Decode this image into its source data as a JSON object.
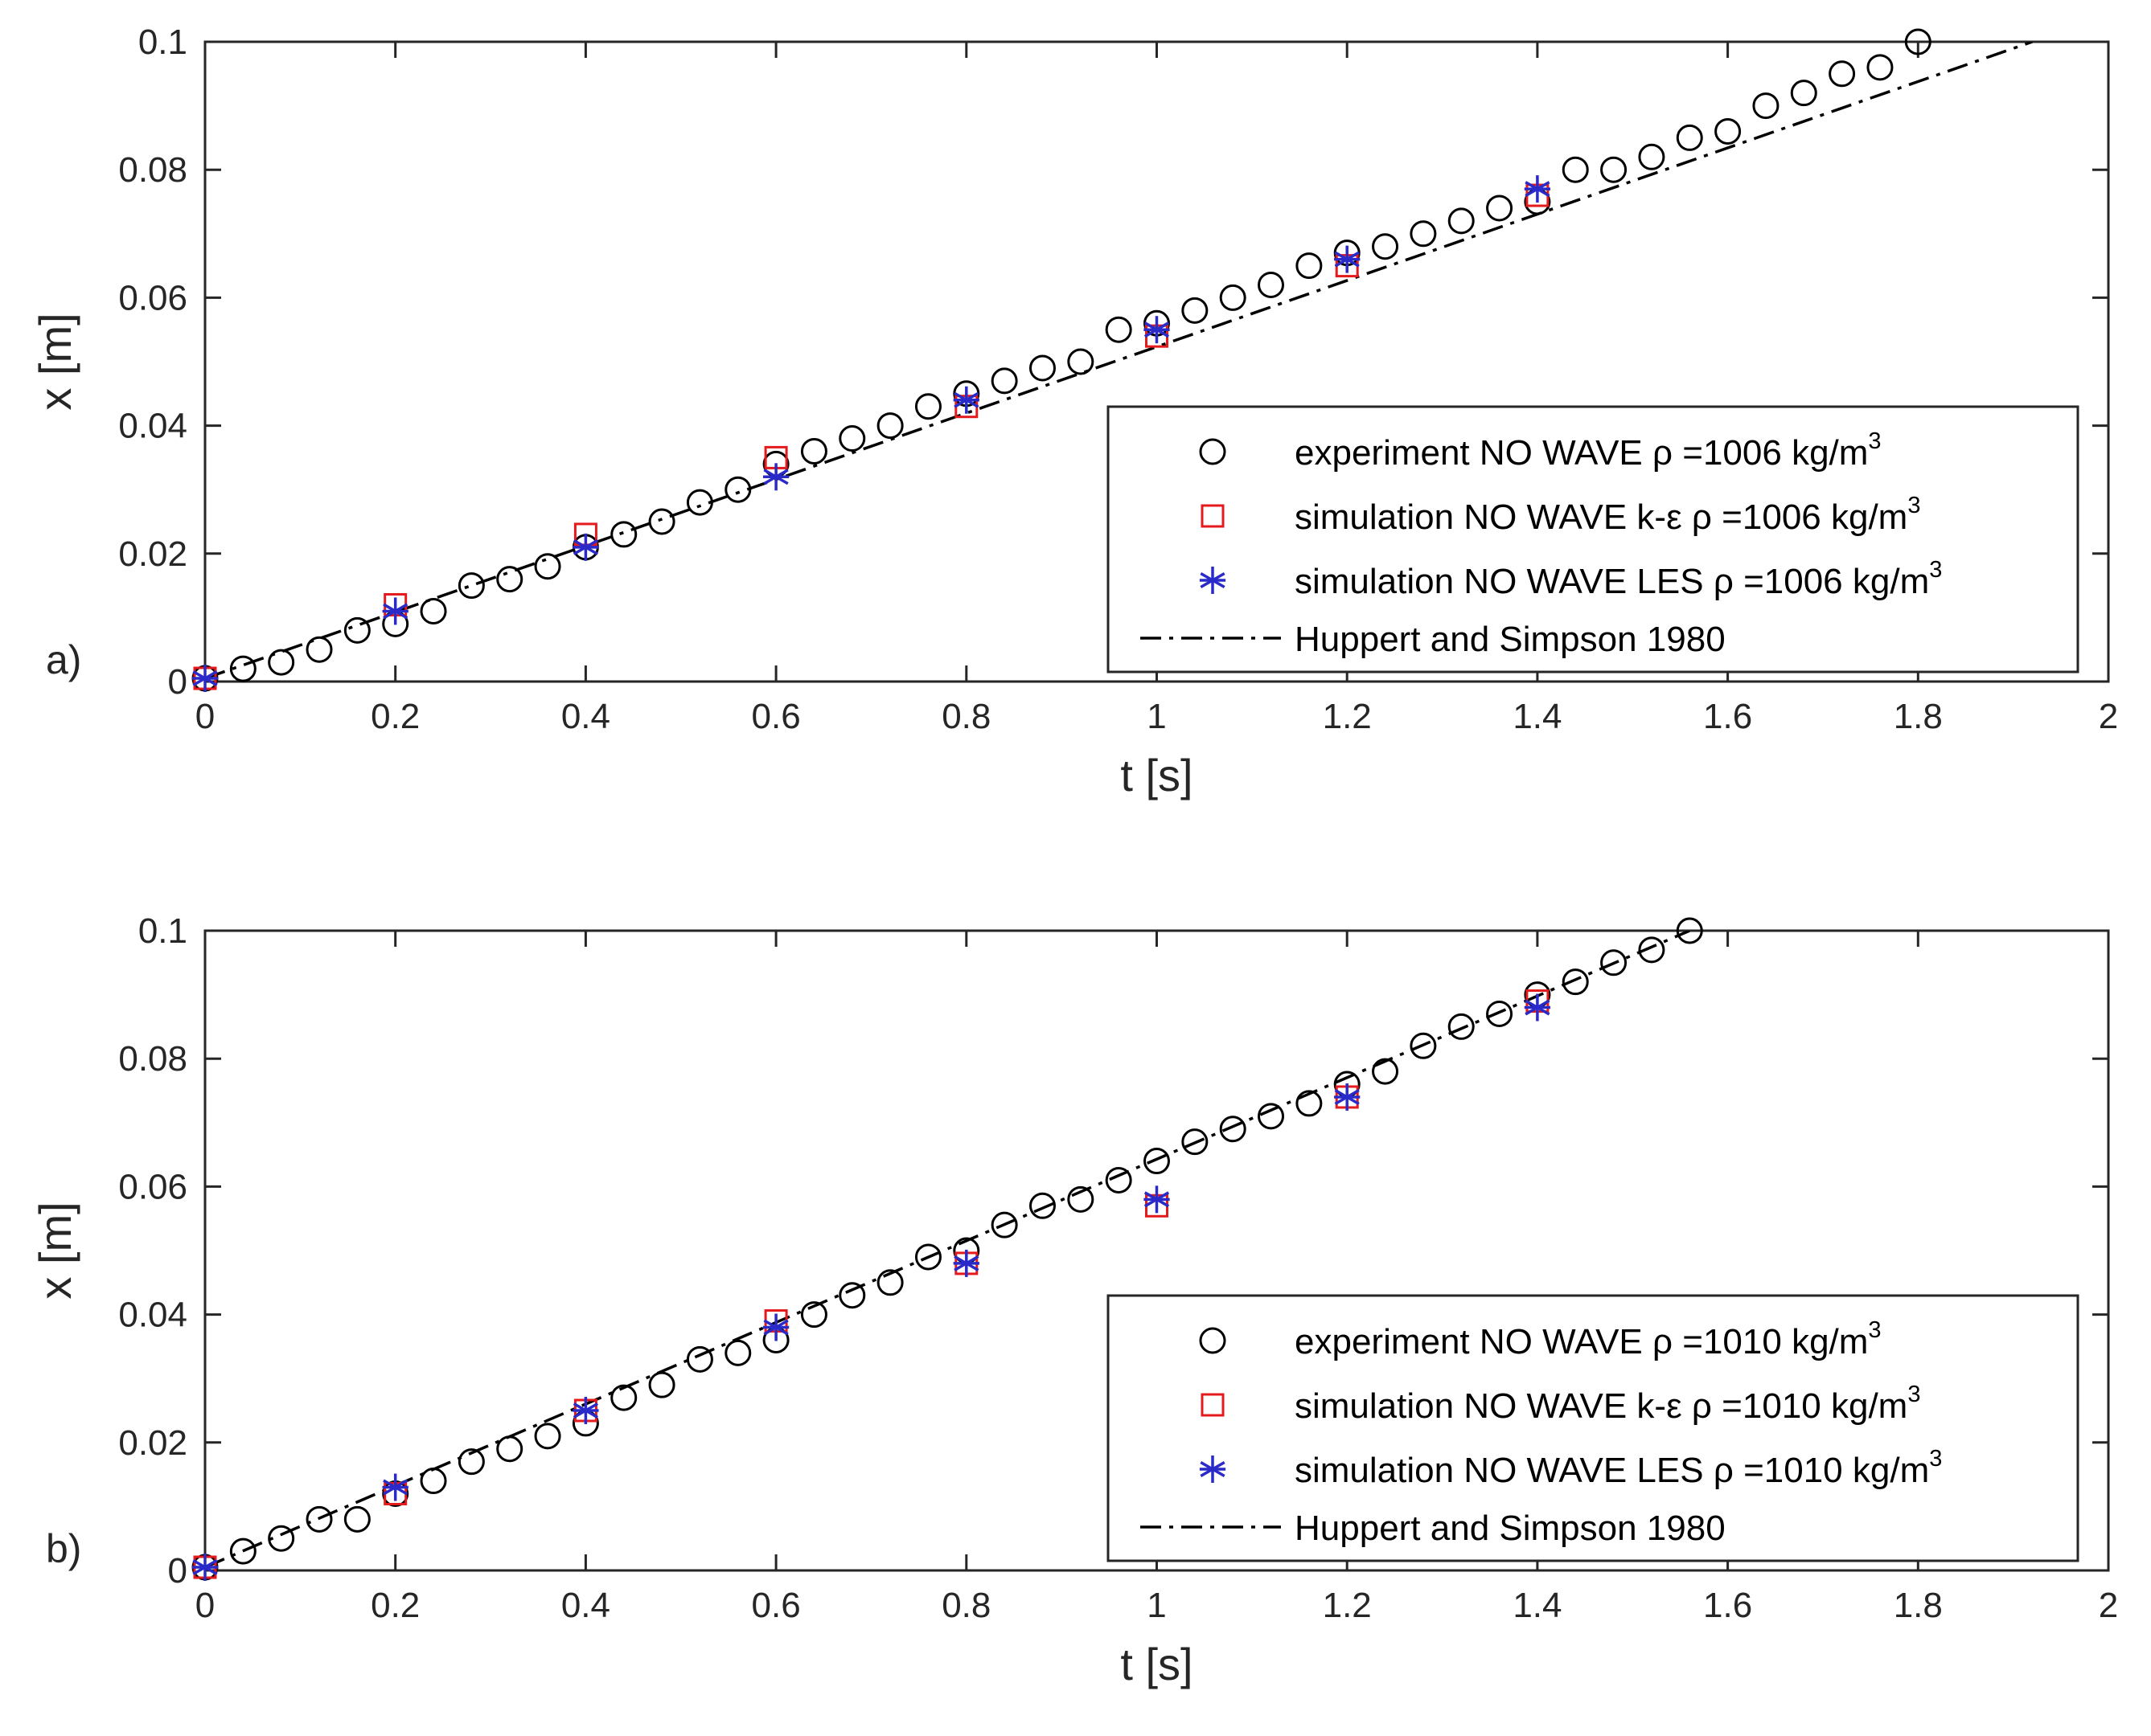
{
  "chart_data": [
    {
      "type": "scatter",
      "panel_label": "a)",
      "xlabel": "t [s]",
      "ylabel": "x [m]",
      "xlim": [
        0,
        2
      ],
      "ylim": [
        0,
        0.1
      ],
      "xticks": [
        "0",
        "0.2",
        "0.4",
        "0.6",
        "0.8",
        "1",
        "1.2",
        "1.4",
        "1.6",
        "1.8",
        "2"
      ],
      "yticks": [
        "0",
        "0.02",
        "0.04",
        "0.06",
        "0.08",
        "0.1"
      ],
      "grid": false,
      "legend_position": "lower-right",
      "series": [
        {
          "name": "experiment NO WAVE ρ =1006 kg/m3",
          "legend_main": "experiment NO WAVE ρ =1006 kg/m",
          "legend_sup": "3",
          "marker": "circle",
          "color": "#000000",
          "x": [
            0,
            0.04,
            0.08,
            0.12,
            0.16,
            0.2,
            0.24,
            0.28,
            0.32,
            0.36,
            0.4,
            0.44,
            0.48,
            0.52,
            0.56,
            0.6,
            0.64,
            0.68,
            0.72,
            0.76,
            0.8,
            0.84,
            0.88,
            0.92,
            0.96,
            1.0,
            1.04,
            1.08,
            1.12,
            1.16,
            1.2,
            1.24,
            1.28,
            1.32,
            1.36,
            1.4,
            1.44,
            1.48,
            1.52,
            1.56,
            1.6,
            1.64,
            1.68,
            1.72,
            1.76,
            1.8
          ],
          "y": [
            0.0005,
            0.002,
            0.003,
            0.005,
            0.008,
            0.009,
            0.011,
            0.015,
            0.016,
            0.018,
            0.021,
            0.023,
            0.025,
            0.028,
            0.03,
            0.034,
            0.036,
            0.038,
            0.04,
            0.043,
            0.045,
            0.047,
            0.049,
            0.05,
            0.055,
            0.056,
            0.058,
            0.06,
            0.062,
            0.065,
            0.067,
            0.068,
            0.07,
            0.072,
            0.074,
            0.075,
            0.08,
            0.08,
            0.082,
            0.085,
            0.086,
            0.09,
            0.092,
            0.095,
            0.096,
            0.1
          ]
        },
        {
          "name": "simulation NO WAVE k-ε ρ =1006 kg/m3",
          "legend_main": "simulation NO WAVE k-ε ρ =1006 kg/m",
          "legend_sup": "3",
          "marker": "square",
          "color": "#e41a1c",
          "x": [
            0,
            0.2,
            0.4,
            0.6,
            0.8,
            1.0,
            1.2,
            1.4
          ],
          "y": [
            0.0005,
            0.012,
            0.023,
            0.035,
            0.043,
            0.054,
            0.065,
            0.076
          ]
        },
        {
          "name": "simulation NO WAVE LES ρ =1006 kg/m3",
          "legend_main": "simulation NO WAVE LES ρ =1006 kg/m",
          "legend_sup": "3",
          "marker": "asterisk",
          "color": "#2a2ac8",
          "x": [
            0,
            0.2,
            0.4,
            0.6,
            0.8,
            1.0,
            1.2,
            1.4
          ],
          "y": [
            0.0005,
            0.011,
            0.021,
            0.032,
            0.044,
            0.055,
            0.066,
            0.077
          ]
        },
        {
          "name": "Huppert and Simpson 1980",
          "legend_main": "Huppert and Simpson 1980",
          "legend_sup": "",
          "marker": "dashdot-line",
          "color": "#000000",
          "x": [
            0,
            1.92
          ],
          "y": [
            0.0005,
            0.1
          ]
        }
      ]
    },
    {
      "type": "scatter",
      "panel_label": "b)",
      "xlabel": "t [s]",
      "ylabel": "x [m]",
      "xlim": [
        0,
        2
      ],
      "ylim": [
        0,
        0.1
      ],
      "xticks": [
        "0",
        "0.2",
        "0.4",
        "0.6",
        "0.8",
        "1",
        "1.2",
        "1.4",
        "1.6",
        "1.8",
        "2"
      ],
      "yticks": [
        "0",
        "0.02",
        "0.04",
        "0.06",
        "0.08",
        "0.1"
      ],
      "grid": false,
      "legend_position": "lower-right",
      "series": [
        {
          "name": "experiment NO WAVE ρ =1010 kg/m3",
          "legend_main": "experiment NO WAVE ρ =1010 kg/m",
          "legend_sup": "3",
          "marker": "circle",
          "color": "#000000",
          "x": [
            0,
            0.04,
            0.08,
            0.12,
            0.16,
            0.2,
            0.24,
            0.28,
            0.32,
            0.36,
            0.4,
            0.44,
            0.48,
            0.52,
            0.56,
            0.6,
            0.64,
            0.68,
            0.72,
            0.76,
            0.8,
            0.84,
            0.88,
            0.92,
            0.96,
            1.0,
            1.04,
            1.08,
            1.12,
            1.16,
            1.2,
            1.24,
            1.28,
            1.32,
            1.36,
            1.4,
            1.44,
            1.48,
            1.52,
            1.56
          ],
          "y": [
            0.0005,
            0.003,
            0.005,
            0.008,
            0.008,
            0.012,
            0.014,
            0.017,
            0.019,
            0.021,
            0.023,
            0.027,
            0.029,
            0.033,
            0.034,
            0.036,
            0.04,
            0.043,
            0.045,
            0.049,
            0.05,
            0.054,
            0.057,
            0.058,
            0.061,
            0.064,
            0.067,
            0.069,
            0.071,
            0.073,
            0.076,
            0.078,
            0.082,
            0.085,
            0.087,
            0.09,
            0.092,
            0.095,
            0.097,
            0.1
          ]
        },
        {
          "name": "simulation NO WAVE k-ε ρ =1010 kg/m3",
          "legend_main": "simulation NO WAVE k-ε ρ =1010 kg/m",
          "legend_sup": "3",
          "marker": "square",
          "color": "#e41a1c",
          "x": [
            0,
            0.2,
            0.4,
            0.6,
            0.8,
            1.0,
            1.2,
            1.4
          ],
          "y": [
            0.0005,
            0.012,
            0.025,
            0.039,
            0.048,
            0.057,
            0.074,
            0.089
          ]
        },
        {
          "name": "simulation NO WAVE LES ρ =1010 kg/m3",
          "legend_main": "simulation NO WAVE LES ρ =1010 kg/m",
          "legend_sup": "3",
          "marker": "asterisk",
          "color": "#2a2ac8",
          "x": [
            0,
            0.2,
            0.4,
            0.6,
            0.8,
            1.0,
            1.2,
            1.4
          ],
          "y": [
            0.0005,
            0.013,
            0.025,
            0.038,
            0.048,
            0.058,
            0.074,
            0.088
          ]
        },
        {
          "name": "Huppert and Simpson 1980",
          "legend_main": "Huppert and Simpson 1980",
          "legend_sup": "",
          "marker": "dashdot-line",
          "color": "#000000",
          "x": [
            0,
            1.56
          ],
          "y": [
            0.0005,
            0.1
          ]
        }
      ]
    }
  ]
}
